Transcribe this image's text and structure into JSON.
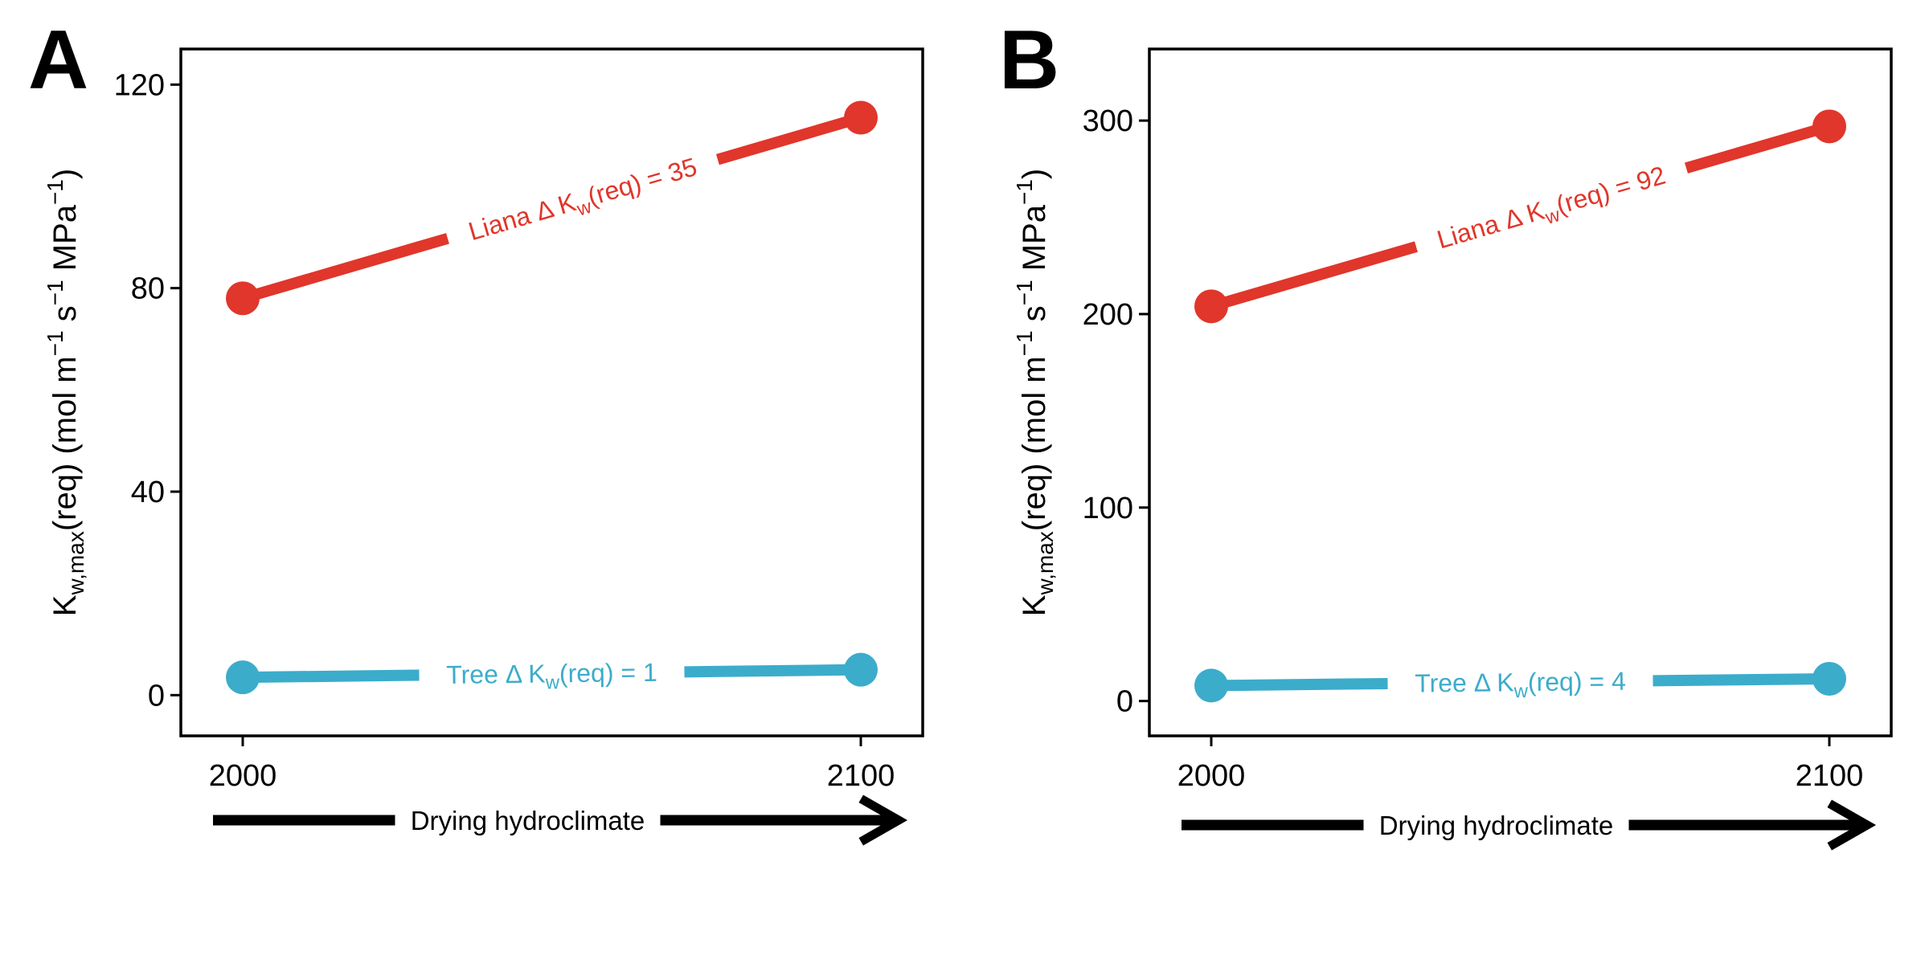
{
  "chart_data": [
    {
      "panel": "A",
      "type": "line",
      "x": [
        2000,
        2100
      ],
      "xticks": [
        "2000",
        "2100"
      ],
      "ylabel_main": "K",
      "ylabel_sub": "w,max",
      "ylabel_rest": "(req)  (mol m",
      "ylabel_sup1": "−1",
      "ylabel_mid": " s",
      "ylabel_sup2": "−1",
      "ylabel_mpa": " MPa",
      "ylabel_sup3": "−1",
      "ylabel_end": ")",
      "ylim": [
        -8,
        127
      ],
      "yticks": [
        0,
        40,
        80,
        120
      ],
      "arrow_label": "Drying hydroclimate",
      "series": [
        {
          "name": "Liana",
          "delta_text": "Δ K",
          "delta_sub": "w",
          "delta_rest": "(req) = 35",
          "color": "#e0362b",
          "values": [
            78,
            113.5
          ],
          "label_pos": 0.55
        },
        {
          "name": "Tree",
          "delta_text": "Δ K",
          "delta_sub": "w",
          "delta_rest": "(req) = 1",
          "color": "#3caccb",
          "values": [
            3.5,
            5
          ],
          "label_pos": 0.5
        }
      ]
    },
    {
      "panel": "B",
      "type": "line",
      "x": [
        2000,
        2100
      ],
      "xticks": [
        "2000",
        "2100"
      ],
      "ylabel_main": "K",
      "ylabel_sub": "w,max",
      "ylabel_rest": "(req)  (mol m",
      "ylabel_sup1": "−1",
      "ylabel_mid": " s",
      "ylabel_sup2": "−1",
      "ylabel_mpa": " MPa",
      "ylabel_sup3": "−1",
      "ylabel_end": ")",
      "ylim": [
        -18,
        337
      ],
      "yticks": [
        0,
        100,
        200,
        300
      ],
      "arrow_label": "Drying hydroclimate",
      "series": [
        {
          "name": "Liana",
          "delta_text": "Δ K",
          "delta_sub": "w",
          "delta_rest": "(req) = 92",
          "color": "#e0362b",
          "values": [
            204,
            297
          ],
          "label_pos": 0.55
        },
        {
          "name": "Tree",
          "delta_text": "Δ K",
          "delta_sub": "w",
          "delta_rest": "(req) = 4",
          "color": "#3caccb",
          "values": [
            8,
            11.5
          ],
          "label_pos": 0.5
        }
      ]
    }
  ]
}
